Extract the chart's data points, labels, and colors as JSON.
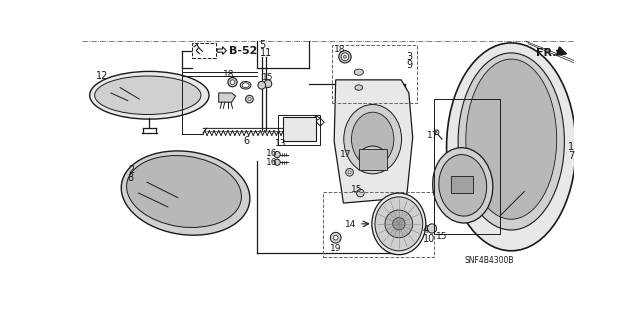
{
  "background_color": "#ffffff",
  "line_color": "#1a1a1a",
  "gray1": "#e8e8e8",
  "gray2": "#d0d0d0",
  "gray3": "#b8b8b8",
  "gray4": "#a0a0a0",
  "figsize": [
    6.4,
    3.19
  ],
  "dpi": 100,
  "labels": {
    "B52": "B-52",
    "FR": "FR.",
    "SNF": "SNF4B4300B"
  }
}
